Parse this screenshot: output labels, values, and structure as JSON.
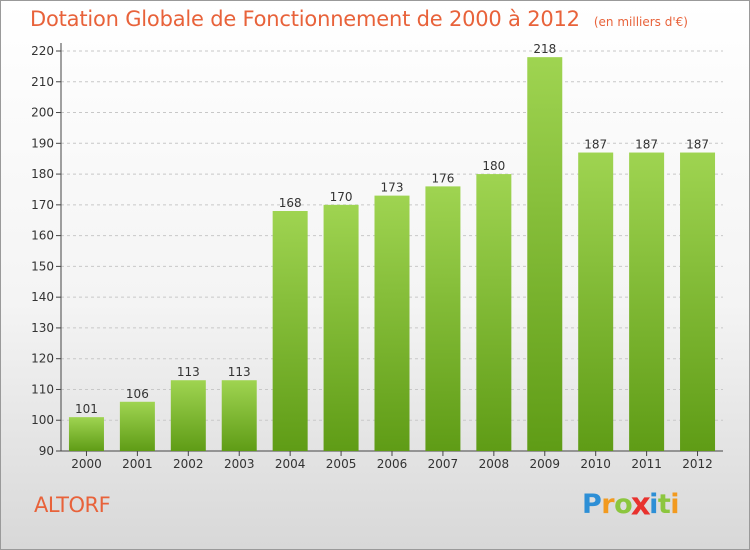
{
  "header": {
    "title": "Dotation Globale de Fonctionnement de 2000 à 2012",
    "unit": "(en milliers d'€)"
  },
  "footer": {
    "commune": "ALTORF",
    "logo_letters": [
      "P",
      "r",
      "o",
      "x",
      "i",
      "t",
      "i"
    ],
    "logo_colors": [
      "#2d8fd6",
      "#f29a1f",
      "#8cc63e",
      "#e8322e",
      "#2d8fd6",
      "#8cc63e",
      "#f29a1f"
    ]
  },
  "colors": {
    "title": "#e8623a",
    "bar_light": "#9fd451",
    "bar_dark": "#5f9c16",
    "grid": "#c8c8c8"
  },
  "chart_data": {
    "type": "bar",
    "title": "Dotation Globale de Fonctionnement de 2000 à 2012",
    "subtitle": "(en milliers d'€)",
    "categories": [
      "2000",
      "2001",
      "2002",
      "2003",
      "2004",
      "2005",
      "2006",
      "2007",
      "2008",
      "2009",
      "2010",
      "2011",
      "2012"
    ],
    "values": [
      101,
      106,
      113,
      113,
      168,
      170,
      173,
      176,
      180,
      218,
      187,
      187,
      187
    ],
    "ylim": [
      90,
      220
    ],
    "yticks": [
      90,
      100,
      110,
      120,
      130,
      140,
      150,
      160,
      170,
      180,
      190,
      200,
      210,
      220
    ],
    "grid": "horizontal dashed",
    "xlabel": "",
    "ylabel": ""
  }
}
